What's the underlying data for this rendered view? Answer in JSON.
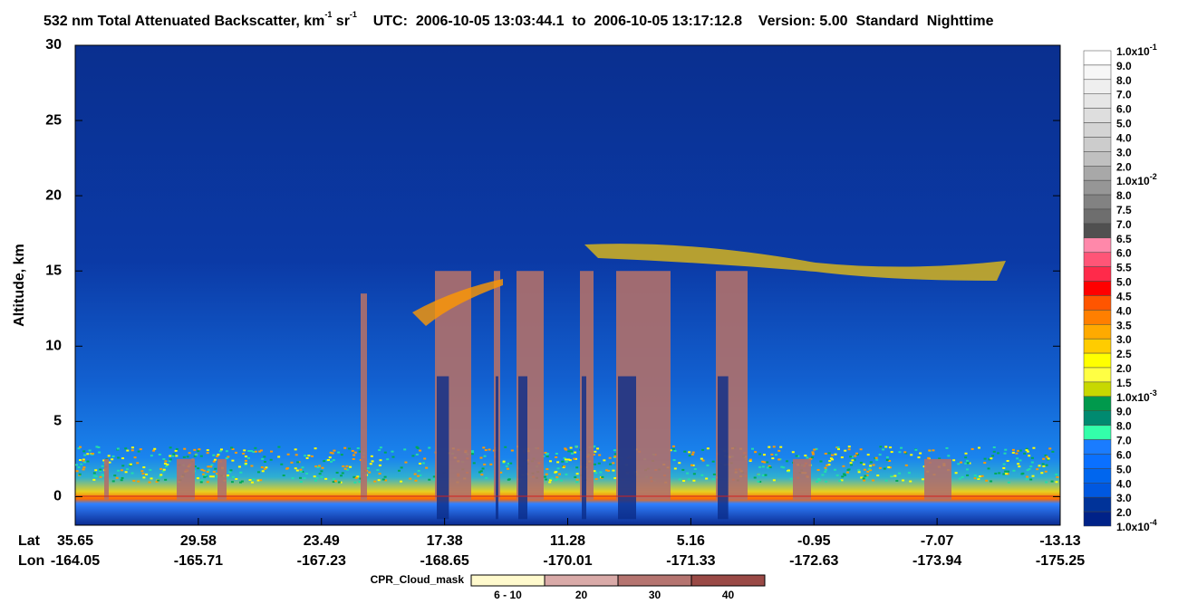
{
  "title_parts": [
    {
      "t": "532 nm Total Attenuated Backscatter, km"
    },
    {
      "t": "-1",
      "sup": true
    },
    {
      "t": " sr"
    },
    {
      "t": "-1",
      "sup": true
    },
    {
      "t": "    UTC:  2006-10-05 13:03:44.1  to  2006-10-05 13:17:12.8    Version: 5.00  Standard  Nighttime"
    }
  ],
  "y_axis": {
    "label": "Altitude, km",
    "ylim": [
      -1.9,
      30
    ],
    "yticks": [
      0,
      5,
      10,
      15,
      20,
      25,
      30
    ]
  },
  "x_axis": {
    "lat_label": "Lat",
    "lon_label": "Lon",
    "lat": [
      "35.65",
      "29.58",
      "23.49",
      "17.38",
      "11.28",
      "5.16",
      "-0.95",
      "-7.07",
      "-13.13"
    ],
    "lon": [
      "-164.05",
      "-165.71",
      "-167.23",
      "-168.65",
      "-170.01",
      "-171.33",
      "-172.63",
      "-173.94",
      "-175.25"
    ]
  },
  "colorbar": {
    "labels": [
      {
        "t": "1.0x10",
        "exp": "-1"
      },
      {
        "t": "9.0"
      },
      {
        "t": "8.0"
      },
      {
        "t": "7.0"
      },
      {
        "t": "6.0"
      },
      {
        "t": "5.0"
      },
      {
        "t": "4.0"
      },
      {
        "t": "3.0"
      },
      {
        "t": "2.0"
      },
      {
        "t": "1.0x10",
        "exp": "-2"
      },
      {
        "t": "8.0"
      },
      {
        "t": "7.5"
      },
      {
        "t": "7.0"
      },
      {
        "t": "6.5"
      },
      {
        "t": "6.0"
      },
      {
        "t": "5.5"
      },
      {
        "t": "5.0"
      },
      {
        "t": "4.5"
      },
      {
        "t": "4.0"
      },
      {
        "t": "3.5"
      },
      {
        "t": "3.0"
      },
      {
        "t": "2.5"
      },
      {
        "t": "2.0"
      },
      {
        "t": "1.5"
      },
      {
        "t": "1.0x10",
        "exp": "-3"
      },
      {
        "t": "9.0"
      },
      {
        "t": "8.0"
      },
      {
        "t": "7.0"
      },
      {
        "t": "6.0"
      },
      {
        "t": "5.0"
      },
      {
        "t": "4.0"
      },
      {
        "t": "3.0"
      },
      {
        "t": "2.0"
      },
      {
        "t": "1.0x10",
        "exp": "-4"
      }
    ],
    "colors": [
      "#ffffff",
      "#f7f7f7",
      "#efefef",
      "#e6e6e6",
      "#dedede",
      "#d4d4d4",
      "#cccccc",
      "#c0c0c0",
      "#a8a8a8",
      "#969696",
      "#828282",
      "#6e6e6e",
      "#505050",
      "#ff88aa",
      "#ff5577",
      "#ff2a4a",
      "#ff0000",
      "#ff5500",
      "#ff7f00",
      "#ffaa00",
      "#ffcc00",
      "#ffff00",
      "#ffff44",
      "#c8d800",
      "#00994c",
      "#008a70",
      "#33ffaa",
      "#1a7cff",
      "#0a70ff",
      "#0066ee",
      "#0058e0",
      "#003399",
      "#002288"
    ]
  },
  "cpr_legend": {
    "title": "CPR_Cloud_mask",
    "items": [
      {
        "label": "6 - 10",
        "color": "#fffacd"
      },
      {
        "label": "20",
        "color": "#d9aaa8"
      },
      {
        "label": "30",
        "color": "#b57470"
      },
      {
        "label": "40",
        "color": "#9a4a46"
      }
    ]
  }
}
